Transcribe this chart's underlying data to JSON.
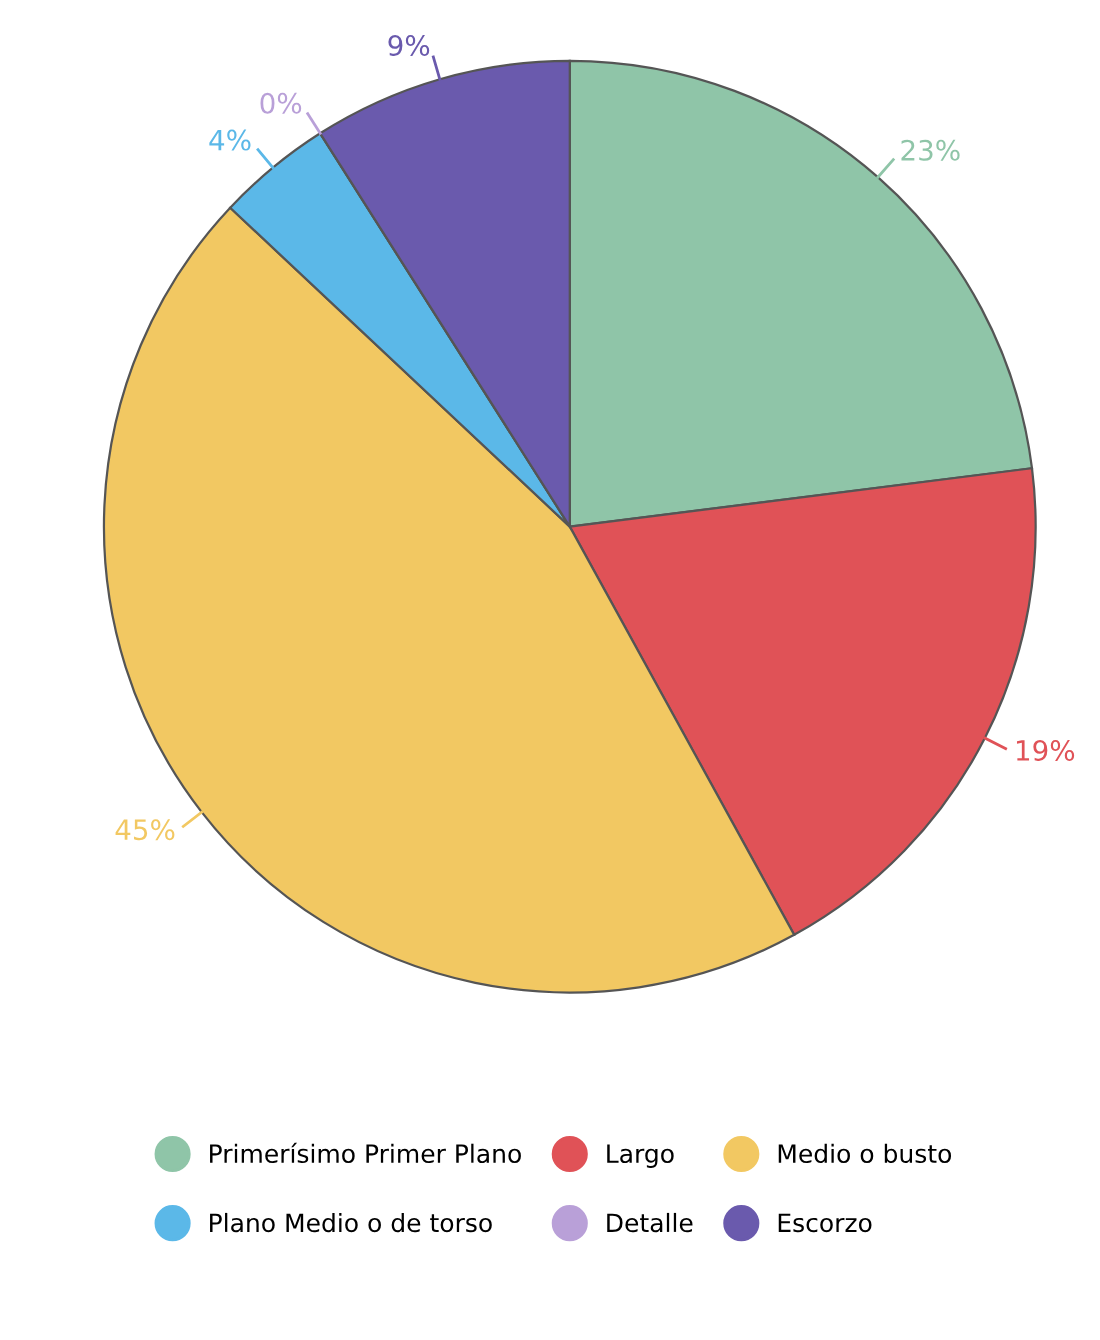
{
  "chart_data": {
    "type": "pie",
    "categories": [
      "Primerísimo Primer Plano",
      "Largo",
      "Medio o busto",
      "Plano Medio o de torso",
      "Detalle",
      "Escorzo"
    ],
    "values": [
      23,
      19,
      45,
      4,
      0,
      9
    ],
    "colors": [
      "#8fc5a8",
      "#e05257",
      "#f2c862",
      "#5bb8e8",
      "#b9a0d8",
      "#6a5aad"
    ],
    "value_labels": [
      "23%",
      "19%",
      "45%",
      "4%",
      "0%",
      "9%"
    ],
    "legend": "bottom"
  }
}
